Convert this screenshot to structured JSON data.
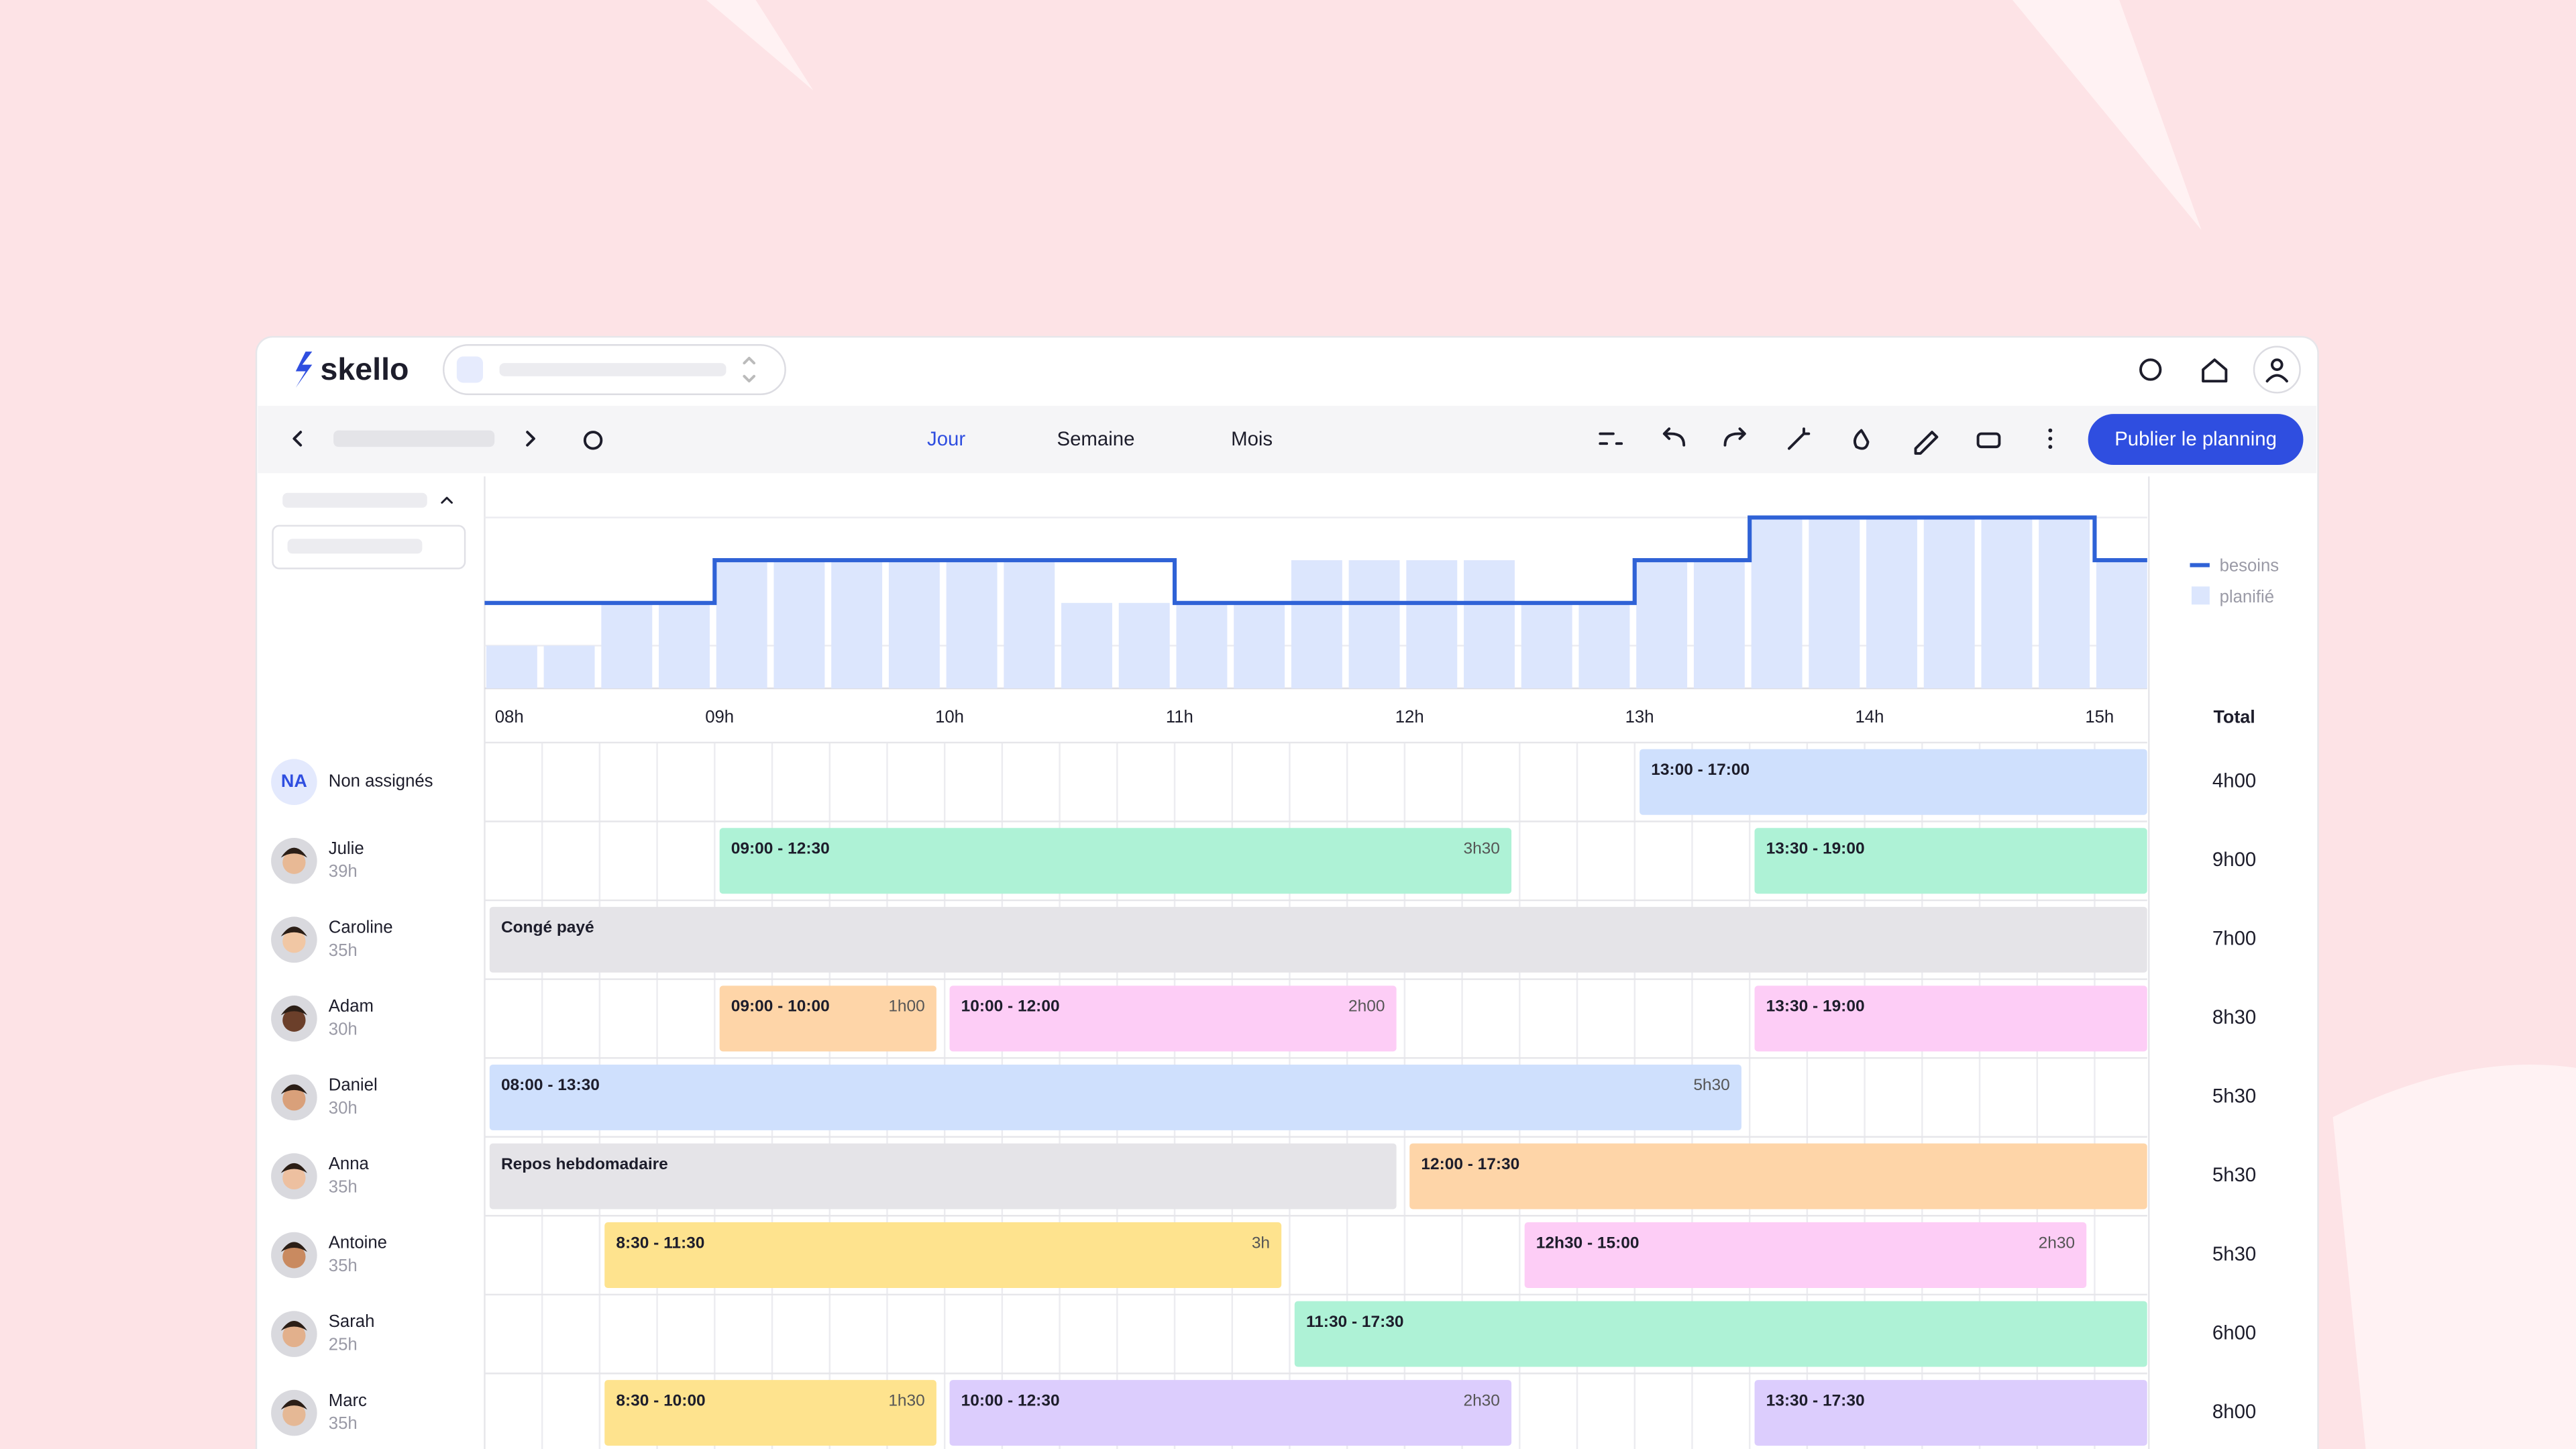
{
  "header": {
    "logo": "skello"
  },
  "toolbar": {
    "tabs": [
      "Jour",
      "Semaine",
      "Mois"
    ],
    "publish": "Publier le planning"
  },
  "chart_data": {
    "type": "bar",
    "categories": [
      "08h",
      null,
      null,
      null,
      "09h",
      null,
      null,
      null,
      "10h",
      null,
      null,
      null,
      "11h",
      null,
      null,
      null,
      "12h",
      null,
      null,
      null,
      "13h",
      null,
      null,
      null,
      "14h",
      null,
      null,
      null,
      "15h"
    ],
    "series": [
      {
        "name": "besoins",
        "color": "#2f62d6",
        "values": [
          2,
          2,
          2,
          2,
          3,
          3,
          3,
          3,
          3,
          3,
          3,
          3,
          2,
          2,
          2,
          2,
          2,
          2,
          2,
          2,
          3,
          3,
          4,
          4,
          4,
          4,
          4,
          4,
          3
        ]
      },
      {
        "name": "planifié",
        "color": "#dce6fd",
        "values": [
          1,
          1,
          2,
          2,
          3,
          3,
          3,
          3,
          3,
          3,
          2,
          2,
          2,
          2,
          3,
          3,
          3,
          3,
          2,
          2,
          3,
          3,
          4,
          4,
          4,
          4,
          4,
          4,
          3
        ]
      }
    ],
    "ylim": [
      0,
      4
    ]
  },
  "schedule": {
    "total_label": "Total",
    "rows": [
      {
        "name": "Non assignés",
        "badge": "NA",
        "total": "4h00",
        "shifts": [
          {
            "label": "13:00 - 17:00",
            "color": "#cfe0fd"
          }
        ]
      },
      {
        "name": "Julie",
        "hours": "39h",
        "total": "9h00",
        "shifts": [
          {
            "label": "09:00 - 12:30",
            "duration": "3h30",
            "color": "#aef2d6"
          },
          {
            "label": "13:30 - 19:00",
            "color": "#aef2d6"
          }
        ]
      },
      {
        "name": "Caroline",
        "hours": "35h",
        "total": "7h00",
        "shifts": [
          {
            "label": "Congé payé",
            "color": "#e5e4e8"
          }
        ]
      },
      {
        "name": "Adam",
        "hours": "30h",
        "total": "8h30",
        "shifts": [
          {
            "label": "09:00 - 10:00",
            "duration": "1h00",
            "color": "#fed5a8"
          },
          {
            "label": "10:00 - 12:00",
            "duration": "2h00",
            "color": "#fdcdf6"
          },
          {
            "label": "13:30 - 19:00",
            "color": "#fdcdf6"
          }
        ]
      },
      {
        "name": "Daniel",
        "hours": "30h",
        "total": "5h30",
        "shifts": [
          {
            "label": "08:00 - 13:30",
            "duration": "5h30",
            "color": "#cfe0fd"
          }
        ]
      },
      {
        "name": "Anna",
        "hours": "35h",
        "total": "5h30",
        "shifts": [
          {
            "label": "Repos hebdomadaire",
            "color": "#e5e4e8"
          },
          {
            "label": "12:00 - 17:30",
            "color": "#fed5a8"
          }
        ]
      },
      {
        "name": "Antoine",
        "hours": "35h",
        "total": "5h30",
        "shifts": [
          {
            "label": "8:30 - 11:30",
            "duration": "3h",
            "color": "#fee38e"
          },
          {
            "label": "12h30 - 15:00",
            "duration": "2h30",
            "color": "#fdcdf6"
          }
        ]
      },
      {
        "name": "Sarah",
        "hours": "25h",
        "total": "6h00",
        "shifts": [
          {
            "label": "11:30 - 17:30",
            "color": "#aef2d6"
          }
        ]
      },
      {
        "name": "Marc",
        "hours": "35h",
        "total": "8h00",
        "shifts": [
          {
            "label": "8:30 - 10:00",
            "duration": "1h30",
            "color": "#fee38e"
          },
          {
            "label": "10:00 - 12:30",
            "duration": "2h30",
            "color": "#dccdfd"
          },
          {
            "label": "13:30 - 17:30",
            "color": "#dccdfd"
          }
        ]
      }
    ]
  }
}
